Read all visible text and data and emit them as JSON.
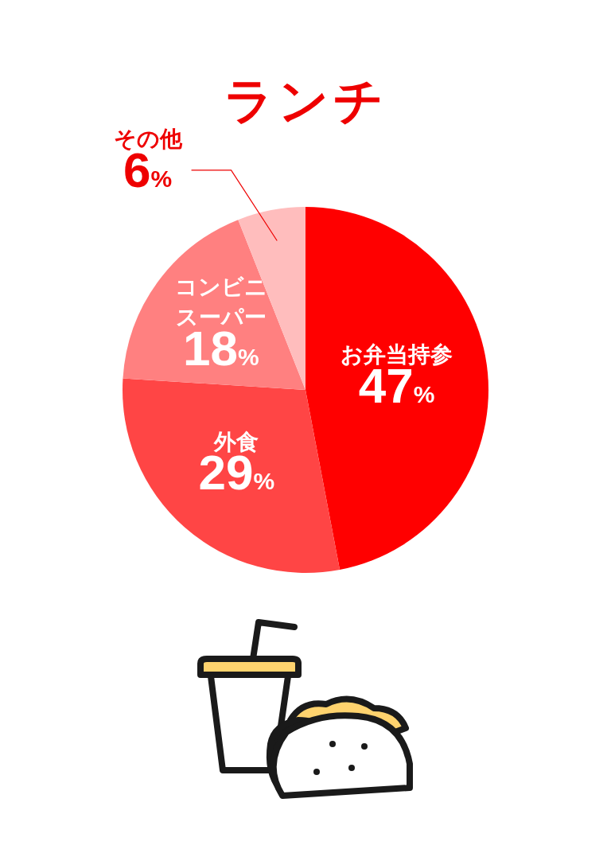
{
  "chart_data": {
    "type": "pie",
    "title": "ランチ",
    "categories": [
      "お弁当持参",
      "外食",
      "コンビニスーパー",
      "その他"
    ],
    "values": [
      47,
      29,
      18,
      6
    ],
    "value_labels": [
      "47%",
      "29%",
      "18%",
      "6%"
    ],
    "colors": [
      "#ff0000",
      "#ff4545",
      "#ff8080",
      "#ffbdbd"
    ],
    "legend": false
  }
}
